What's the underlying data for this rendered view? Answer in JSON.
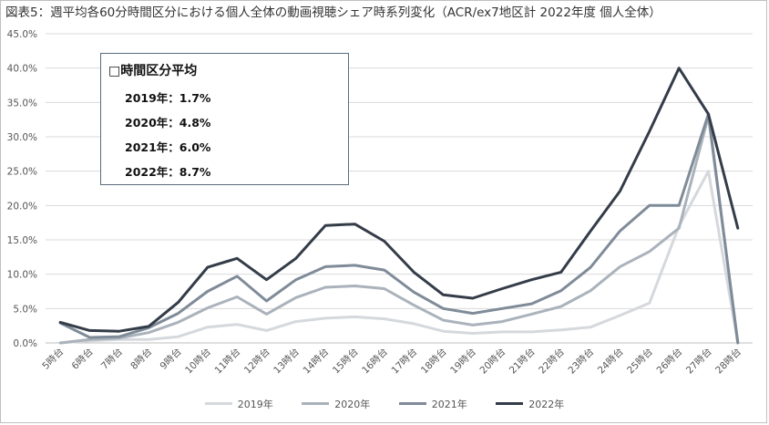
{
  "title": "図表5：週平均各60分時間区分における個人全体の動画視聴シェア時系列変化（ACR/ex7地区計 2022年度 個人全体）",
  "avg_box": {
    "title": "□時間区分平均",
    "rows": [
      "2019年：1.7%",
      "2020年：4.8%",
      "2021年：6.0%",
      "2022年：8.7%"
    ]
  },
  "colors": {
    "2019": "#d5d8dc",
    "2020": "#aab2bb",
    "2021": "#7f8b98",
    "2022": "#333c48",
    "grid": "#d9d9d9",
    "axis": "#bfbfbf"
  },
  "chart_data": {
    "type": "line",
    "title": "",
    "xlabel": "",
    "ylabel": "",
    "ylim": [
      0,
      45
    ],
    "yticks": [
      "0.0%",
      "5.0%",
      "10.0%",
      "15.0%",
      "20.0%",
      "25.0%",
      "30.0%",
      "35.0%",
      "40.0%",
      "45.0%"
    ],
    "grid": true,
    "legend": "bottom",
    "categories": [
      "5時台",
      "6時台",
      "7時台",
      "8時台",
      "9時台",
      "10時台",
      "11時台",
      "12時台",
      "13時台",
      "14時台",
      "15時台",
      "16時台",
      "17時台",
      "18時台",
      "19時台",
      "20時台",
      "21時台",
      "22時台",
      "23時台",
      "24時台",
      "25時台",
      "26時台",
      "27時台",
      "28時台"
    ],
    "series": [
      {
        "name": "2019年",
        "values": [
          0.0,
          0.3,
          0.5,
          0.5,
          0.9,
          2.3,
          2.7,
          1.8,
          3.1,
          3.6,
          3.8,
          3.5,
          2.8,
          1.7,
          1.4,
          1.6,
          1.6,
          1.9,
          2.3,
          4.0,
          5.8,
          17.0,
          25.0,
          0.0
        ]
      },
      {
        "name": "2020年",
        "values": [
          0.0,
          0.5,
          0.7,
          1.5,
          3.0,
          5.1,
          6.7,
          4.2,
          6.6,
          8.1,
          8.3,
          7.9,
          5.5,
          3.3,
          2.6,
          3.1,
          4.2,
          5.3,
          7.6,
          11.1,
          13.3,
          16.7,
          33.0,
          0.0
        ]
      },
      {
        "name": "2021年",
        "values": [
          2.9,
          0.8,
          0.9,
          2.2,
          4.3,
          7.5,
          9.7,
          6.1,
          9.2,
          11.1,
          11.3,
          10.6,
          7.4,
          5.0,
          4.3,
          5.0,
          5.7,
          7.6,
          11.0,
          16.3,
          20.0,
          20.0,
          33.3,
          0.0
        ]
      },
      {
        "name": "2022年",
        "values": [
          3.0,
          1.8,
          1.7,
          2.4,
          5.9,
          11.0,
          12.3,
          9.2,
          12.3,
          17.1,
          17.3,
          14.8,
          10.3,
          7.0,
          6.5,
          7.9,
          9.2,
          10.3,
          16.3,
          22.1,
          30.8,
          40.0,
          33.3,
          16.7
        ]
      }
    ]
  }
}
